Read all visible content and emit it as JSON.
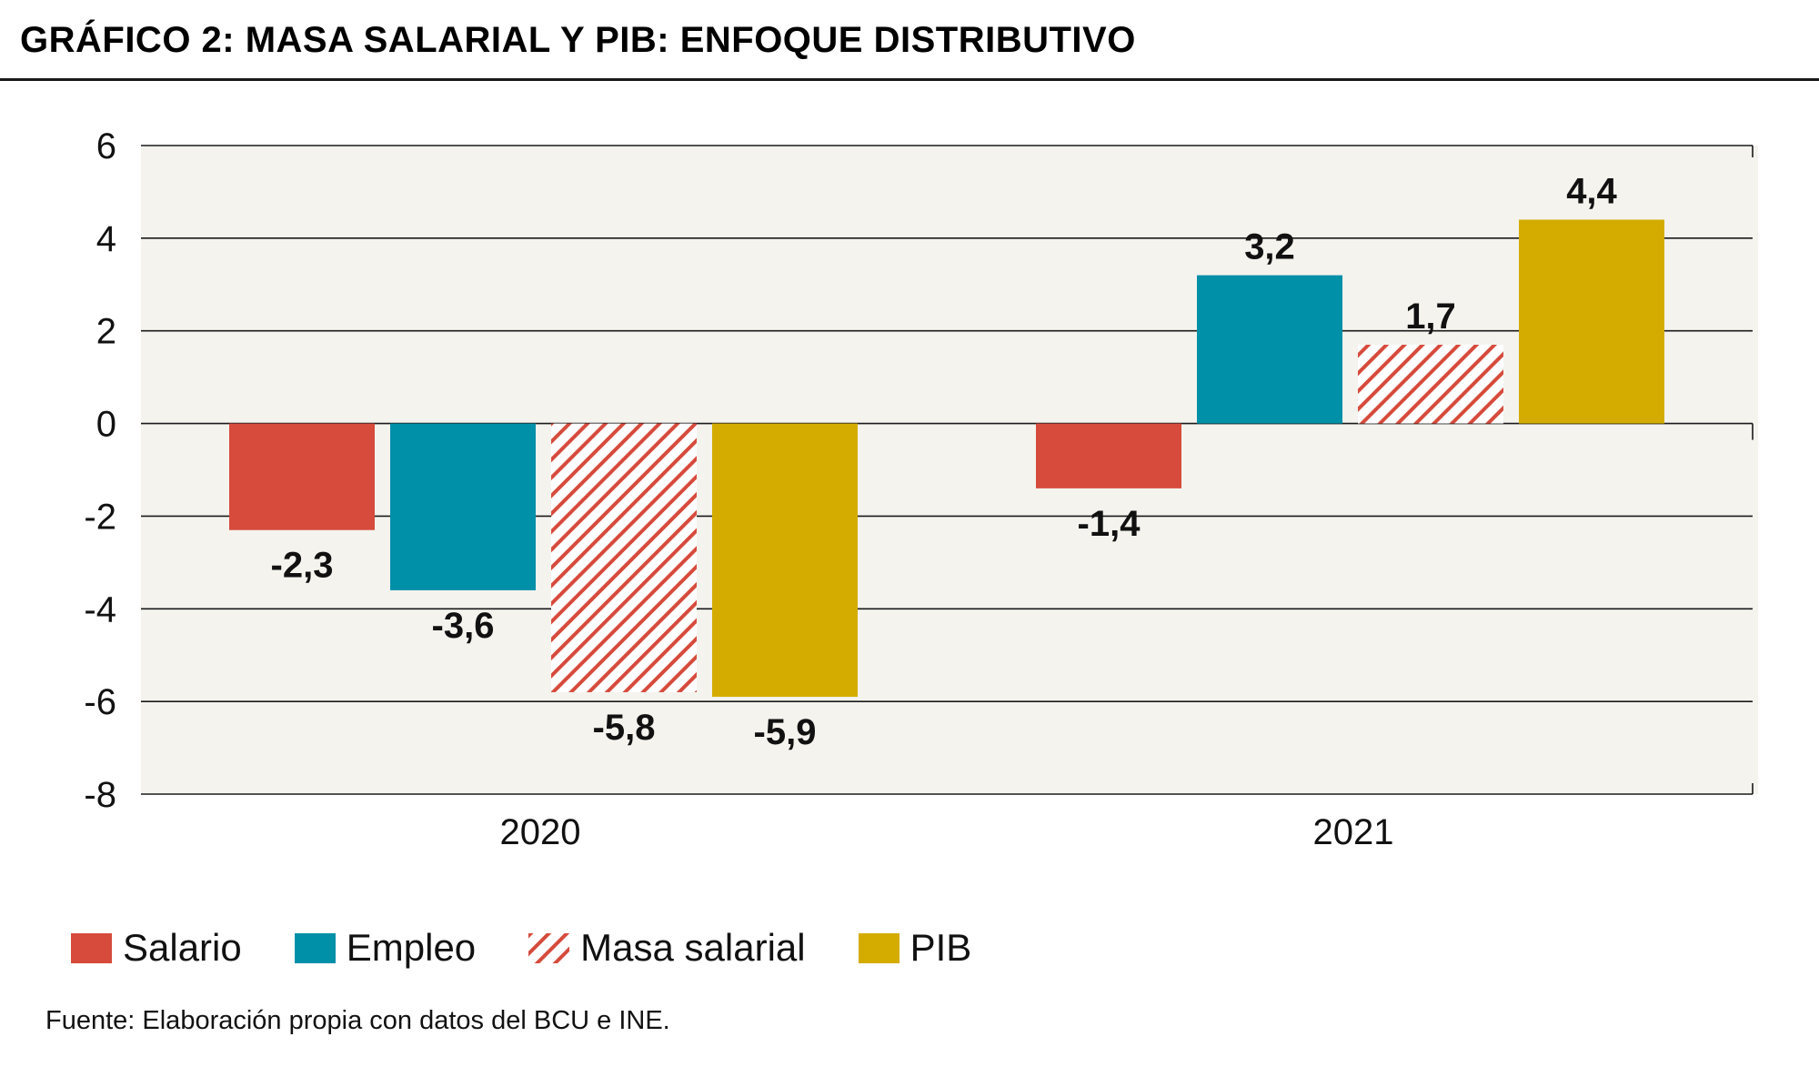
{
  "title": "GRÁFICO 2: MASA SALARIAL Y PIB: ENFOQUE DISTRIBUTIVO",
  "source": "Fuente: Elaboración propia con datos del BCU e INE.",
  "colors": {
    "salario": "#d64b3c",
    "empleo": "#0090a8",
    "masa_salarial": "#d64b3c",
    "pib": "#d4ac00",
    "plot_background": "#f4f3ee",
    "gridline": "#1a1a1a"
  },
  "chart_data": {
    "type": "bar",
    "title": "GRÁFICO 2: MASA SALARIAL Y PIB: ENFOQUE DISTRIBUTIVO",
    "xlabel": "",
    "ylabel": "",
    "categories": [
      "2020",
      "2021"
    ],
    "ylim": [
      -8,
      6
    ],
    "yticks": [
      6,
      4,
      2,
      0,
      -2,
      -4,
      -6,
      -8
    ],
    "grid": true,
    "legend_position": "bottom",
    "series": [
      {
        "name": "Salario",
        "values": [
          -2.3,
          -1.4
        ],
        "labels": [
          "-2,3",
          "-1,4"
        ],
        "color": "#d64b3c",
        "pattern": "solid"
      },
      {
        "name": "Empleo",
        "values": [
          -3.6,
          3.2
        ],
        "labels": [
          "-3,6",
          "3,2"
        ],
        "color": "#0090a8",
        "pattern": "solid"
      },
      {
        "name": "Masa salarial",
        "values": [
          -5.8,
          1.7
        ],
        "labels": [
          "-5,8",
          "1,7"
        ],
        "color": "#d64b3c",
        "pattern": "hatched"
      },
      {
        "name": "PIB",
        "values": [
          -5.9,
          4.4
        ],
        "labels": [
          "-5,9",
          "4,4"
        ],
        "color": "#d4ac00",
        "pattern": "solid"
      }
    ]
  }
}
